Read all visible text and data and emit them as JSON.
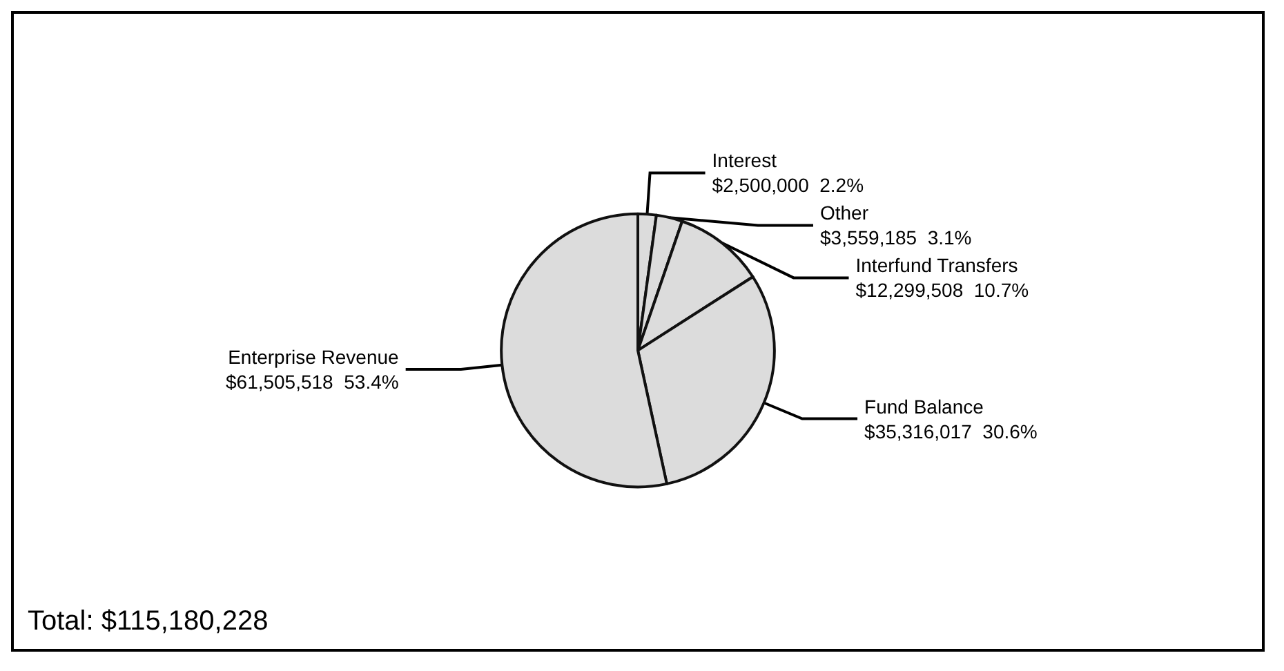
{
  "chart_data": {
    "type": "pie",
    "categories": [
      "Interest",
      "Other",
      "Interfund Transfers",
      "Fund Balance",
      "Enterprise Revenue"
    ],
    "values": [
      2500000,
      3559185,
      12299508,
      35316017,
      61505518
    ],
    "value_labels": [
      "$2,500,000  2.2%",
      "$3,559,185  3.1%",
      "$12,299,508  10.7%",
      "$35,316,017  30.6%",
      "$61,505,518  53.4%"
    ],
    "colors": [
      "#dcdcdc",
      "#dcdcdc",
      "#dcdcdc",
      "#dcdcdc",
      "#dcdcdc"
    ],
    "annotations": [
      "Total: $115,180,228"
    ],
    "legend": false
  }
}
